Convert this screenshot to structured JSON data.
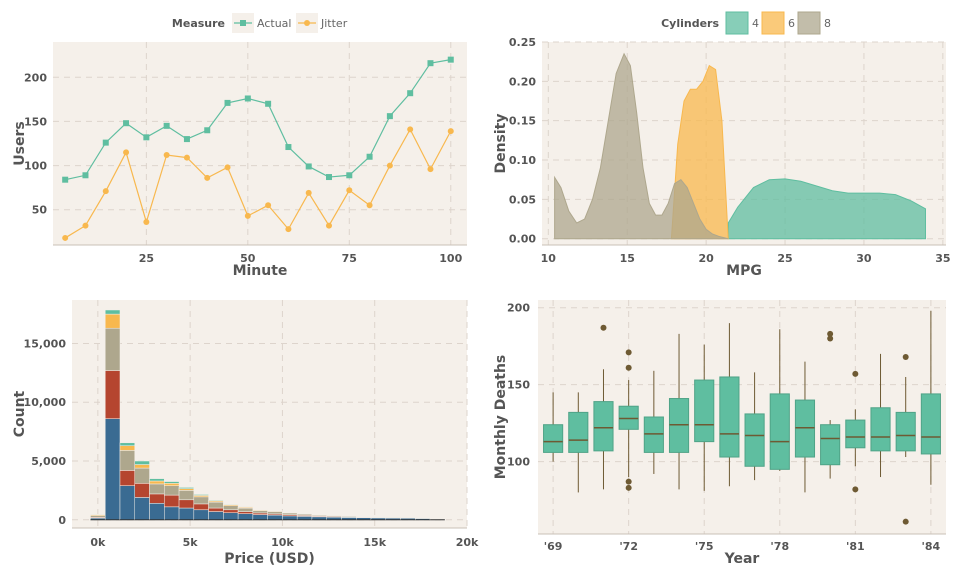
{
  "colors": {
    "teal": "#5fbea0",
    "orange": "#f8b84e",
    "olive": "#aea78d",
    "red": "#b5452f",
    "blue": "#3a6b92",
    "box_point": "#6e5a33",
    "panel_bg": "#f5f0ea"
  },
  "chart_data": [
    {
      "type": "line",
      "xlabel": "Minute",
      "ylabel": "Users",
      "xlim": [
        2,
        104
      ],
      "ylim": [
        10,
        240
      ],
      "xticks": [
        25,
        50,
        75,
        100
      ],
      "yticks": [
        50,
        100,
        150,
        200
      ],
      "legend_title": "Measure",
      "legend_position": "top",
      "x": [
        5,
        10,
        15,
        20,
        25,
        30,
        35,
        40,
        45,
        50,
        55,
        60,
        65,
        70,
        75,
        80,
        85,
        90,
        95,
        100
      ],
      "series": [
        {
          "name": "Actual",
          "marker": "square",
          "values": [
            84,
            89,
            126,
            148,
            132,
            145,
            130,
            140,
            171,
            176,
            170,
            121,
            99,
            87,
            89,
            110,
            156,
            182,
            216,
            220
          ]
        },
        {
          "name": "Jitter",
          "marker": "circle",
          "values": [
            18,
            32,
            71,
            115,
            36,
            112,
            109,
            86,
            98,
            43,
            55,
            28,
            69,
            32,
            72,
            55,
            100,
            141,
            96,
            139
          ]
        }
      ]
    },
    {
      "type": "area",
      "xlabel": "MPG",
      "ylabel": "Density",
      "xlim": [
        9.6,
        35.2
      ],
      "ylim": [
        -0.008,
        0.25
      ],
      "xticks": [
        10,
        15,
        20,
        25,
        30,
        35
      ],
      "yticks": [
        "0.00",
        "0.05",
        "0.10",
        "0.15",
        "0.20",
        "0.25"
      ],
      "ytick_values": [
        0,
        0.05,
        0.1,
        0.15,
        0.2,
        0.25
      ],
      "legend_title": "Cylinders",
      "legend_position": "top",
      "series": [
        {
          "name": "4",
          "x": [
            21.4,
            22,
            23,
            24,
            25,
            26,
            27,
            28,
            29,
            30,
            31,
            32,
            33,
            33.9
          ],
          "values": [
            0.02,
            0.04,
            0.065,
            0.075,
            0.076,
            0.073,
            0.067,
            0.061,
            0.058,
            0.058,
            0.058,
            0.056,
            0.048,
            0.038
          ]
        },
        {
          "name": "6",
          "x": [
            17.8,
            18.2,
            18.6,
            19,
            19.4,
            19.8,
            20.2,
            20.6,
            21,
            21.4
          ],
          "values": [
            0.0,
            0.12,
            0.175,
            0.19,
            0.19,
            0.2,
            0.22,
            0.215,
            0.15,
            0.0
          ]
        },
        {
          "name": "8",
          "x": [
            10.4,
            10.8,
            11.3,
            11.8,
            12.3,
            12.8,
            13.3,
            13.8,
            14.3,
            14.8,
            15.2,
            15.6,
            16.0,
            16.4,
            16.8,
            17.2,
            17.6,
            18.0,
            18.4,
            18.8,
            19.2,
            19.6,
            20.0,
            20.4,
            20.8,
            21.4
          ],
          "values": [
            0.078,
            0.065,
            0.035,
            0.02,
            0.025,
            0.05,
            0.09,
            0.15,
            0.21,
            0.235,
            0.22,
            0.16,
            0.09,
            0.045,
            0.03,
            0.03,
            0.045,
            0.07,
            0.075,
            0.065,
            0.045,
            0.025,
            0.012,
            0.006,
            0.003,
            0.0
          ]
        }
      ]
    },
    {
      "type": "bar",
      "xlabel": "Price (USD)",
      "ylabel": "Count",
      "xlim": [
        -1400,
        20000
      ],
      "ylim": [
        -700,
        18700
      ],
      "xticks": [
        "0k",
        "5k",
        "10k",
        "15k",
        "20k"
      ],
      "xtick_values": [
        0,
        5000,
        10000,
        15000,
        20000
      ],
      "yticks": [
        "0",
        "5,000",
        "10,000",
        "15,000"
      ],
      "ytick_values": [
        0,
        5000,
        10000,
        15000
      ],
      "bin_width": 800,
      "bin_starts": [
        -400,
        400,
        1200,
        2000,
        2800,
        3600,
        4400,
        5200,
        6000,
        6800,
        7600,
        8400,
        9200,
        10000,
        10800,
        11600,
        12400,
        13200,
        14000,
        14800,
        15600,
        16400,
        17200,
        18000
      ],
      "series": [
        {
          "name": "Blue",
          "values": [
            150,
            8600,
            2900,
            1900,
            1400,
            1100,
            1000,
            850,
            700,
            600,
            520,
            440,
            400,
            330,
            290,
            250,
            220,
            200,
            180,
            160,
            150,
            130,
            110,
            50
          ]
        },
        {
          "name": "Red",
          "values": [
            60,
            4100,
            1300,
            1200,
            800,
            1000,
            700,
            500,
            300,
            250,
            170,
            140,
            100,
            100,
            80,
            70,
            60,
            40,
            30,
            20,
            15,
            10,
            10,
            0
          ]
        },
        {
          "name": "Olive",
          "values": [
            150,
            3600,
            1700,
            1300,
            850,
            800,
            800,
            600,
            500,
            350,
            300,
            200,
            200,
            150,
            100,
            80,
            70,
            60,
            40,
            30,
            20,
            10,
            10,
            0
          ]
        },
        {
          "name": "Orange",
          "values": [
            80,
            1200,
            400,
            300,
            250,
            200,
            150,
            120,
            100,
            80,
            70,
            60,
            50,
            40,
            30,
            20,
            20,
            10,
            10,
            10,
            10,
            10,
            5,
            0
          ]
        },
        {
          "name": "Teal",
          "values": [
            30,
            350,
            250,
            300,
            200,
            150,
            100,
            80,
            60,
            50,
            40,
            30,
            30,
            20,
            20,
            10,
            10,
            10,
            10,
            10,
            5,
            5,
            5,
            0
          ]
        }
      ]
    },
    {
      "type": "box",
      "xlabel": "Year",
      "ylabel": "Monthly Deaths",
      "xlim": [
        1968.4,
        1984.6
      ],
      "ylim": [
        53,
        205
      ],
      "xticks": [
        "'69",
        "'72",
        "'75",
        "'78",
        "'81",
        "'84"
      ],
      "xtick_values": [
        1969,
        1972,
        1975,
        1978,
        1981,
        1984
      ],
      "yticks": [
        100,
        150,
        200
      ],
      "boxes": [
        {
          "year": 1969,
          "whisker_low": 100,
          "q1": 106,
          "median": 113,
          "q3": 124,
          "whisker_high": 145,
          "outliers": []
        },
        {
          "year": 1970,
          "whisker_low": 80,
          "q1": 106,
          "median": 114,
          "q3": 132,
          "whisker_high": 145,
          "outliers": []
        },
        {
          "year": 1971,
          "whisker_low": 82,
          "q1": 107,
          "median": 122,
          "q3": 139,
          "whisker_high": 160,
          "outliers": [
            187
          ]
        },
        {
          "year": 1972,
          "whisker_low": 90,
          "q1": 121,
          "median": 128,
          "q3": 136,
          "whisker_high": 153,
          "outliers": [
            171,
            161,
            87,
            83
          ]
        },
        {
          "year": 1973,
          "whisker_low": 92,
          "q1": 106,
          "median": 118,
          "q3": 129,
          "whisker_high": 159,
          "outliers": []
        },
        {
          "year": 1974,
          "whisker_low": 82,
          "q1": 106,
          "median": 124,
          "q3": 141,
          "whisker_high": 183,
          "outliers": []
        },
        {
          "year": 1975,
          "whisker_low": 81,
          "q1": 113,
          "median": 124,
          "q3": 153,
          "whisker_high": 176,
          "outliers": []
        },
        {
          "year": 1976,
          "whisker_low": 84,
          "q1": 103,
          "median": 118,
          "q3": 155,
          "whisker_high": 190,
          "outliers": []
        },
        {
          "year": 1977,
          "whisker_low": 88,
          "q1": 97,
          "median": 117,
          "q3": 131,
          "whisker_high": 158,
          "outliers": []
        },
        {
          "year": 1978,
          "whisker_low": 94,
          "q1": 95,
          "median": 113,
          "q3": 144,
          "whisker_high": 186,
          "outliers": []
        },
        {
          "year": 1979,
          "whisker_low": 80,
          "q1": 103,
          "median": 122,
          "q3": 140,
          "whisker_high": 165,
          "outliers": []
        },
        {
          "year": 1980,
          "whisker_low": 89,
          "q1": 98,
          "median": 115,
          "q3": 124,
          "whisker_high": 127,
          "outliers": [
            183,
            180
          ]
        },
        {
          "year": 1981,
          "whisker_low": 97,
          "q1": 109,
          "median": 116,
          "q3": 127,
          "whisker_high": 134,
          "outliers": [
            157,
            82
          ]
        },
        {
          "year": 1982,
          "whisker_low": 90,
          "q1": 107,
          "median": 116,
          "q3": 135,
          "whisker_high": 170,
          "outliers": []
        },
        {
          "year": 1983,
          "whisker_low": 103,
          "q1": 107,
          "median": 117,
          "q3": 132,
          "whisker_high": 155,
          "outliers": [
            168,
            61
          ]
        },
        {
          "year": 1984,
          "whisker_low": 85,
          "q1": 105,
          "median": 116,
          "q3": 144,
          "whisker_high": 198,
          "outliers": []
        }
      ]
    }
  ]
}
